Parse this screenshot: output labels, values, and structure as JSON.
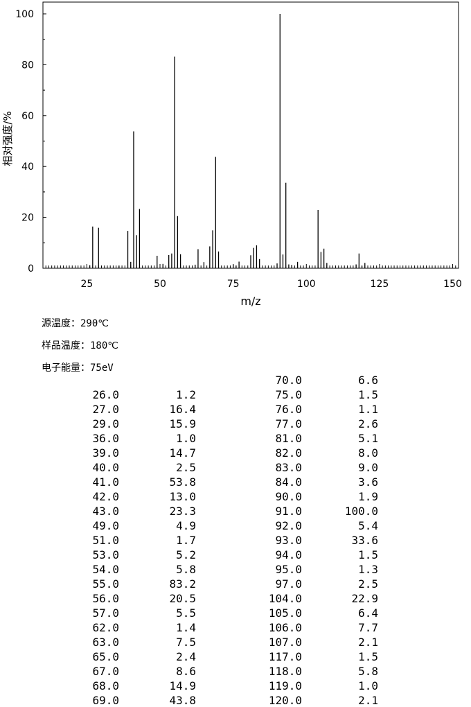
{
  "chart_data": {
    "type": "bar",
    "xlabel": "m/z",
    "ylabel": "相对强度/%",
    "xlim": [
      10,
      152
    ],
    "ylim": [
      0,
      100
    ],
    "xticks": [
      25,
      50,
      75,
      100,
      125,
      150
    ],
    "yticks": [
      0,
      20,
      40,
      60,
      80,
      100
    ],
    "bar_color": "#000000",
    "grid": false,
    "points": [
      {
        "mz": 26.0,
        "intensity": 1.2
      },
      {
        "mz": 27.0,
        "intensity": 16.4
      },
      {
        "mz": 29.0,
        "intensity": 15.9
      },
      {
        "mz": 36.0,
        "intensity": 1.0
      },
      {
        "mz": 39.0,
        "intensity": 14.7
      },
      {
        "mz": 40.0,
        "intensity": 2.5
      },
      {
        "mz": 41.0,
        "intensity": 53.8
      },
      {
        "mz": 42.0,
        "intensity": 13.0
      },
      {
        "mz": 43.0,
        "intensity": 23.3
      },
      {
        "mz": 49.0,
        "intensity": 4.9
      },
      {
        "mz": 51.0,
        "intensity": 1.7
      },
      {
        "mz": 53.0,
        "intensity": 5.2
      },
      {
        "mz": 54.0,
        "intensity": 5.8
      },
      {
        "mz": 55.0,
        "intensity": 83.2
      },
      {
        "mz": 56.0,
        "intensity": 20.5
      },
      {
        "mz": 57.0,
        "intensity": 5.5
      },
      {
        "mz": 62.0,
        "intensity": 1.4
      },
      {
        "mz": 63.0,
        "intensity": 7.5
      },
      {
        "mz": 65.0,
        "intensity": 2.4
      },
      {
        "mz": 67.0,
        "intensity": 8.6
      },
      {
        "mz": 68.0,
        "intensity": 14.9
      },
      {
        "mz": 69.0,
        "intensity": 43.8
      },
      {
        "mz": 70.0,
        "intensity": 6.6
      },
      {
        "mz": 75.0,
        "intensity": 1.5
      },
      {
        "mz": 76.0,
        "intensity": 1.1
      },
      {
        "mz": 77.0,
        "intensity": 2.6
      },
      {
        "mz": 81.0,
        "intensity": 5.1
      },
      {
        "mz": 82.0,
        "intensity": 8.0
      },
      {
        "mz": 83.0,
        "intensity": 9.0
      },
      {
        "mz": 84.0,
        "intensity": 3.6
      },
      {
        "mz": 90.0,
        "intensity": 1.9
      },
      {
        "mz": 91.0,
        "intensity": 100.0
      },
      {
        "mz": 92.0,
        "intensity": 5.4
      },
      {
        "mz": 93.0,
        "intensity": 33.6
      },
      {
        "mz": 94.0,
        "intensity": 1.5
      },
      {
        "mz": 95.0,
        "intensity": 1.3
      },
      {
        "mz": 97.0,
        "intensity": 2.5
      },
      {
        "mz": 104.0,
        "intensity": 22.9
      },
      {
        "mz": 105.0,
        "intensity": 6.4
      },
      {
        "mz": 106.0,
        "intensity": 7.7
      },
      {
        "mz": 107.0,
        "intensity": 2.1
      },
      {
        "mz": 117.0,
        "intensity": 1.5
      },
      {
        "mz": 118.0,
        "intensity": 5.8
      },
      {
        "mz": 119.0,
        "intensity": 1.0
      },
      {
        "mz": 120.0,
        "intensity": 2.1
      }
    ]
  },
  "conditions": {
    "source_temp_label": "源温度：",
    "source_temp_value": "290℃",
    "sample_temp_label": "样品温度：",
    "sample_temp_value": "180℃",
    "electron_energy_label": "电子能量：",
    "electron_energy_value": "75eV"
  },
  "peak_table": {
    "left": [
      [
        "26.0",
        "1.2"
      ],
      [
        "27.0",
        "16.4"
      ],
      [
        "29.0",
        "15.9"
      ],
      [
        "36.0",
        "1.0"
      ],
      [
        "39.0",
        "14.7"
      ],
      [
        "40.0",
        "2.5"
      ],
      [
        "41.0",
        "53.8"
      ],
      [
        "42.0",
        "13.0"
      ],
      [
        "43.0",
        "23.3"
      ],
      [
        "49.0",
        "4.9"
      ],
      [
        "51.0",
        "1.7"
      ],
      [
        "53.0",
        "5.2"
      ],
      [
        "54.0",
        "5.8"
      ],
      [
        "55.0",
        "83.2"
      ],
      [
        "56.0",
        "20.5"
      ],
      [
        "57.0",
        "5.5"
      ],
      [
        "62.0",
        "1.4"
      ],
      [
        "63.0",
        "7.5"
      ],
      [
        "65.0",
        "2.4"
      ],
      [
        "67.0",
        "8.6"
      ],
      [
        "68.0",
        "14.9"
      ],
      [
        "69.0",
        "43.8"
      ]
    ],
    "right": [
      [
        "70.0",
        "6.6"
      ],
      [
        "75.0",
        "1.5"
      ],
      [
        "76.0",
        "1.1"
      ],
      [
        "77.0",
        "2.6"
      ],
      [
        "81.0",
        "5.1"
      ],
      [
        "82.0",
        "8.0"
      ],
      [
        "83.0",
        "9.0"
      ],
      [
        "84.0",
        "3.6"
      ],
      [
        "90.0",
        "1.9"
      ],
      [
        "91.0",
        "100.0"
      ],
      [
        "92.0",
        "5.4"
      ],
      [
        "93.0",
        "33.6"
      ],
      [
        "94.0",
        "1.5"
      ],
      [
        "95.0",
        "1.3"
      ],
      [
        "97.0",
        "2.5"
      ],
      [
        "104.0",
        "22.9"
      ],
      [
        "105.0",
        "6.4"
      ],
      [
        "106.0",
        "7.7"
      ],
      [
        "107.0",
        "2.1"
      ],
      [
        "117.0",
        "1.5"
      ],
      [
        "118.0",
        "5.8"
      ],
      [
        "119.0",
        "1.0"
      ],
      [
        "120.0",
        "2.1"
      ]
    ]
  }
}
